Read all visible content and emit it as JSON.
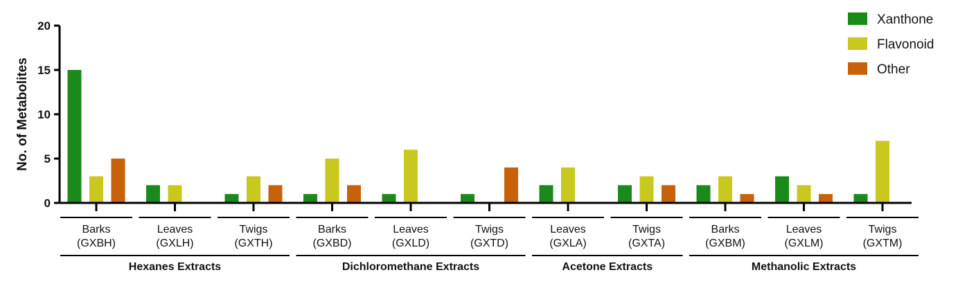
{
  "chart_data": {
    "type": "bar",
    "ylabel": "No. of Metabolites",
    "ylim": [
      0,
      20
    ],
    "yticks": [
      "0",
      "5",
      "10",
      "15",
      "20"
    ],
    "grid": false,
    "legend_position": "top-right",
    "categories": [
      {
        "name": "Barks",
        "code": "(GXBH)",
        "group": "Hexanes Extracts"
      },
      {
        "name": "Leaves",
        "code": "(GXLH)",
        "group": "Hexanes Extracts"
      },
      {
        "name": "Twigs",
        "code": "(GXTH)",
        "group": "Hexanes Extracts"
      },
      {
        "name": "Barks",
        "code": "(GXBD)",
        "group": "Dichloromethane Extracts"
      },
      {
        "name": "Leaves",
        "code": "(GXLD)",
        "group": "Dichloromethane Extracts"
      },
      {
        "name": "Twigs",
        "code": "(GXTD)",
        "group": "Dichloromethane Extracts"
      },
      {
        "name": "Leaves",
        "code": "(GXLA)",
        "group": "Acetone Extracts"
      },
      {
        "name": "Twigs",
        "code": "(GXTA)",
        "group": "Acetone Extracts"
      },
      {
        "name": "Barks",
        "code": "(GXBM)",
        "group": "Methanolic Extracts"
      },
      {
        "name": "Leaves",
        "code": "(GXLM)",
        "group": "Methanolic Extracts"
      },
      {
        "name": "Twigs",
        "code": "(GXTM)",
        "group": "Methanolic Extracts"
      }
    ],
    "groups": [
      {
        "label": "Hexanes Extracts",
        "count": 3
      },
      {
        "label": "Dichloromethane Extracts",
        "count": 3
      },
      {
        "label": "Acetone Extracts",
        "count": 2
      },
      {
        "label": "Methanolic Extracts",
        "count": 3
      }
    ],
    "series": [
      {
        "name": "Xanthone",
        "color": "#1a8a1a",
        "values": [
          15,
          2,
          1,
          1,
          1,
          1,
          2,
          2,
          2,
          3,
          1
        ]
      },
      {
        "name": "Flavonoid",
        "color": "#c8c81e",
        "values": [
          3,
          2,
          3,
          5,
          6,
          0,
          4,
          3,
          3,
          2,
          7
        ]
      },
      {
        "name": "Other",
        "color": "#c8620a",
        "values": [
          5,
          0,
          2,
          2,
          0,
          4,
          0,
          2,
          1,
          1,
          0
        ]
      }
    ]
  }
}
